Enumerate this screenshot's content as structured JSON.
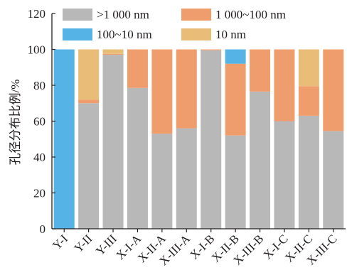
{
  "chart_data": {
    "type": "bar",
    "stacked": true,
    "categories": [
      "Y-I",
      "Y-II",
      "Y-III",
      "X-I-A",
      "X-II-A",
      "X-III-A",
      "X-I-B",
      "X-II-B",
      "X-III-B",
      "X-I-C",
      "X-II-C",
      "X-III-C"
    ],
    "series": [
      {
        "name": ">1 000 nm",
        "color": "#b8b8b8",
        "values": [
          0,
          70,
          97,
          78.5,
          53,
          56,
          99.5,
          52,
          76.5,
          60,
          63,
          54.5
        ]
      },
      {
        "name": "1 000~100 nm",
        "color": "#ef9d6d",
        "values": [
          0,
          2,
          0.5,
          21.5,
          47,
          44,
          0.5,
          40,
          23.5,
          40,
          16.5,
          45.5
        ]
      },
      {
        "name": "100~10 nm",
        "color": "#55b3e6",
        "values": [
          100,
          0,
          0,
          0,
          0,
          0,
          0,
          8,
          0,
          0,
          0,
          0
        ]
      },
      {
        "name": "10 nm",
        "color": "#e9bd78",
        "values": [
          0,
          28,
          2.5,
          0,
          0,
          0,
          0,
          0,
          0,
          0,
          20.5,
          0
        ]
      }
    ],
    "ylabel": "孔径分布比例/%",
    "ylim": [
      0,
      120
    ],
    "yticks": [
      0,
      20,
      40,
      60,
      80,
      100,
      120
    ],
    "legend_position": "top",
    "grid": false
  }
}
